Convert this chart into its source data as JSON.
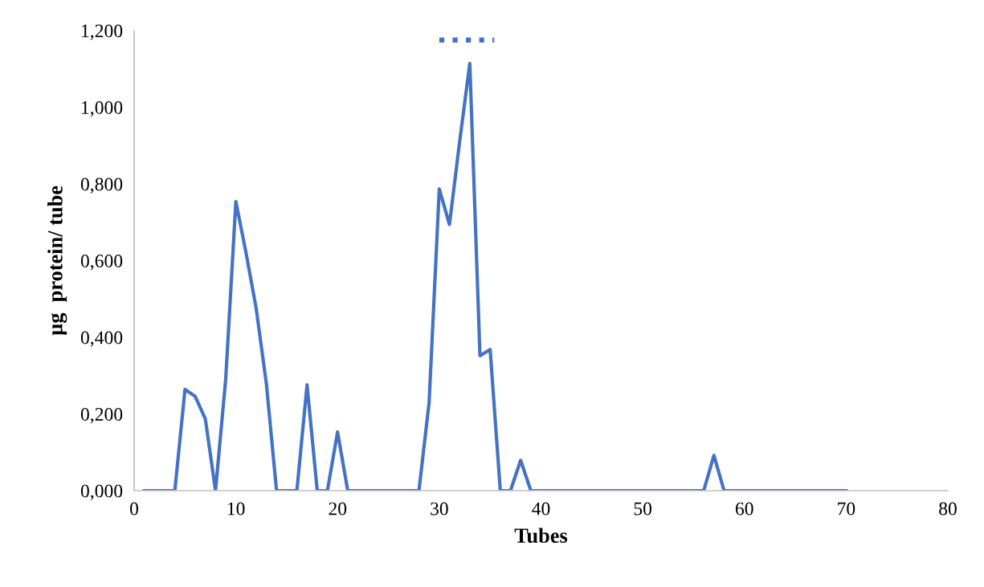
{
  "chart_data": {
    "type": "line",
    "xlabel": "Tubes",
    "ylabel": "µg  protein/ tube",
    "x": [
      1,
      2,
      3,
      4,
      5,
      6,
      7,
      8,
      9,
      10,
      11,
      12,
      13,
      14,
      15,
      16,
      17,
      18,
      19,
      20,
      21,
      22,
      23,
      24,
      25,
      26,
      27,
      28,
      29,
      30,
      31,
      32,
      33,
      34,
      35,
      36,
      37,
      38,
      39,
      40,
      41,
      42,
      43,
      44,
      45,
      46,
      47,
      48,
      49,
      50,
      51,
      52,
      53,
      54,
      55,
      56,
      57,
      58,
      59,
      60,
      61,
      62,
      63,
      64,
      65,
      66,
      67,
      68,
      69,
      70
    ],
    "series": [
      {
        "color": "#4472c4",
        "values": [
          0,
          0,
          0,
          0,
          0.264,
          0.246,
          0.187,
          0,
          0.29,
          0.754,
          0.62,
          0.475,
          0.279,
          0,
          0,
          0,
          0.276,
          0,
          0,
          0.153,
          0,
          0,
          0,
          0,
          0,
          0,
          0,
          0,
          0.23,
          0.787,
          0.694,
          0.91,
          1.114,
          0.352,
          0.368,
          0,
          0,
          0.079,
          0,
          0,
          0,
          0,
          0,
          0,
          0,
          0,
          0,
          0,
          0,
          0,
          0,
          0,
          0,
          0,
          0,
          0,
          0.092,
          0,
          0,
          0,
          0,
          0,
          0,
          0,
          0,
          0,
          0,
          0,
          0,
          0
        ]
      },
      {
        "color": "#4472c4",
        "x": [
          30,
          35.4
        ],
        "values": [
          1.175,
          1.175
        ],
        "line_style": "dotted"
      }
    ],
    "xlim": [
      0,
      80
    ],
    "xticks": [
      0,
      10,
      20,
      30,
      40,
      50,
      60,
      70,
      80
    ],
    "ylim": [
      0,
      1.2
    ],
    "yticks": [
      {
        "value": 0,
        "label": "0,000"
      },
      {
        "value": 0.2,
        "label": "0,200"
      },
      {
        "value": 0.4,
        "label": "0,400"
      },
      {
        "value": 0.6,
        "label": "0,600"
      },
      {
        "value": 0.8,
        "label": "0,800"
      },
      {
        "value": 1.0,
        "label": "1,000"
      },
      {
        "value": 1.2,
        "label": "1,200"
      }
    ],
    "grid": false,
    "legend": false,
    "marker": "none",
    "line_style": "solid"
  }
}
